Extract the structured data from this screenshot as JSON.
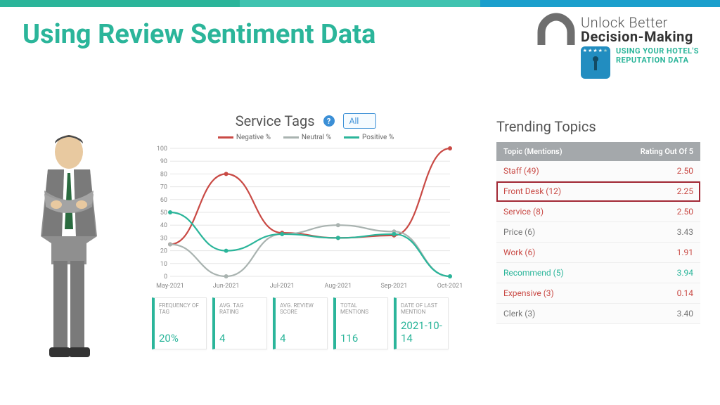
{
  "topbar_colors": [
    "#2bb59a",
    "#40c3b0",
    "#1b9fcc"
  ],
  "title": "Using Review Sentiment Data",
  "logo": {
    "line1": "Unlock Better",
    "line2": "Decision-Making",
    "tag1": "USING YOUR HOTEL'S",
    "tag2": "REPUTATION DATA",
    "arch_color": "#6e6e6e",
    "badge_color": "#228dc0"
  },
  "chart": {
    "title": "Service Tags",
    "filter_value": "All",
    "legend": [
      {
        "label": "Negative %",
        "color": "#c94a45"
      },
      {
        "label": "Neutral %",
        "color": "#a9b3b0"
      },
      {
        "label": "Positive %",
        "color": "#2bb59a"
      }
    ],
    "ylim": [
      0,
      100
    ],
    "ytick_step": 10,
    "x_labels": [
      "May-2021",
      "Jun-2021",
      "Jul-2021",
      "Aug-2021",
      "Sep-2021",
      "Oct-2021"
    ],
    "series": {
      "negative": [
        25,
        80,
        34,
        30,
        32,
        100
      ],
      "neutral": [
        25,
        0,
        33,
        40,
        35,
        0
      ],
      "positive": [
        50,
        20,
        33,
        30,
        33,
        0
      ]
    },
    "background_color": "#ffffff",
    "grid_color": "#e5e5e5"
  },
  "stats": [
    {
      "label": "FREQUENCY OF TAG",
      "value": "20%"
    },
    {
      "label": "AVG. TAG RATING",
      "value": "4"
    },
    {
      "label": "AVG. REVIEW SCORE",
      "value": "4"
    },
    {
      "label": "TOTAL MENTIONS",
      "value": "116"
    },
    {
      "label": "DATE OF LAST MENTION",
      "value": "2021-10-14"
    }
  ],
  "trending": {
    "title": "Trending Topics",
    "header_left": "Topic (Mentions)",
    "header_right": "Rating Out Of 5",
    "rows": [
      {
        "topic": "Staff (49)",
        "rating": "2.50",
        "color": "#c94a45",
        "highlight": false
      },
      {
        "topic": "Front Desk (12)",
        "rating": "2.25",
        "color": "#c94a45",
        "highlight": true
      },
      {
        "topic": "Service (8)",
        "rating": "2.50",
        "color": "#c94a45",
        "highlight": false
      },
      {
        "topic": "Price (6)",
        "rating": "3.43",
        "color": "#777",
        "highlight": false
      },
      {
        "topic": "Work (6)",
        "rating": "1.91",
        "color": "#c94a45",
        "highlight": false
      },
      {
        "topic": "Recommend (5)",
        "rating": "3.94",
        "color": "#2bb59a",
        "highlight": false
      },
      {
        "topic": "Expensive (3)",
        "rating": "0.14",
        "color": "#c94a45",
        "highlight": false
      },
      {
        "topic": "Clerk (3)",
        "rating": "3.40",
        "color": "#777",
        "highlight": false
      }
    ]
  }
}
